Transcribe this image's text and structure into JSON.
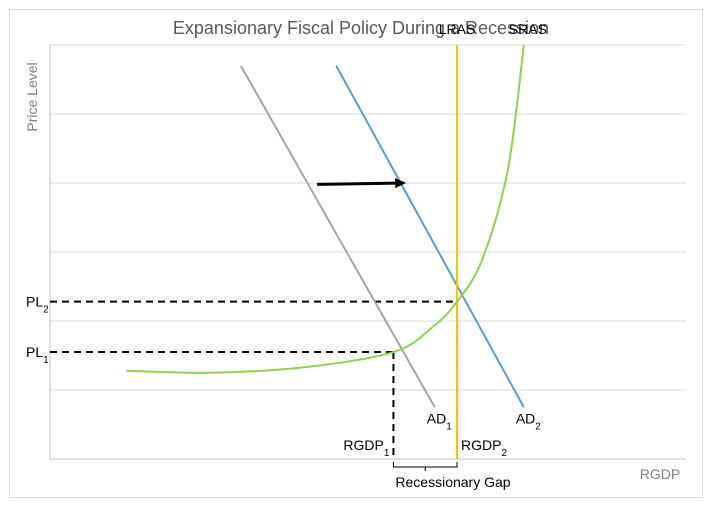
{
  "chart_data": {
    "type": "line",
    "title": "Expansionary Fiscal Policy During a Recession",
    "xlabel": "RGDP",
    "ylabel": "Price Level",
    "grid": true,
    "xlim": [
      0,
      10
    ],
    "ylim": [
      0,
      6
    ],
    "y_gridlines": [
      1,
      2,
      3,
      4,
      5,
      6
    ],
    "series": [
      {
        "name": "AD1",
        "label_main": "AD",
        "label_sub": "1",
        "color": "#A5A5A5",
        "points": [
          [
            3.0,
            5.7
          ],
          [
            6.05,
            0.75
          ]
        ]
      },
      {
        "name": "AD2",
        "label_main": "AD",
        "label_sub": "2",
        "color": "#5B9BD5",
        "points": [
          [
            4.5,
            5.7
          ],
          [
            7.45,
            0.75
          ]
        ]
      },
      {
        "name": "LRAS",
        "label_main": "LRAS",
        "label_sub": "",
        "color": "#FFC000",
        "points": [
          [
            6.4,
            6.0
          ],
          [
            6.4,
            0.0
          ]
        ]
      },
      {
        "name": "SRAS",
        "label_main": "SRAS",
        "label_sub": "",
        "color": "#92D050",
        "points": [
          [
            1.2,
            1.28
          ],
          [
            2.5,
            1.25
          ],
          [
            4.0,
            1.33
          ],
          [
            5.4,
            1.55
          ],
          [
            6.0,
            1.9
          ],
          [
            6.4,
            2.28
          ],
          [
            6.8,
            2.9
          ],
          [
            7.2,
            4.2
          ],
          [
            7.45,
            6.0
          ]
        ]
      }
    ],
    "shift_arrow": {
      "from": [
        4.2,
        3.98
      ],
      "to": [
        5.6,
        4.0
      ],
      "color": "#000000"
    },
    "equilibria": [
      {
        "name": "PL1",
        "label_main": "PL",
        "label_sub": "1",
        "y": 1.55,
        "x_name": "RGDP1",
        "x_label_main": "RGDP",
        "x_label_sub": "1",
        "x": 5.4
      },
      {
        "name": "PL2",
        "label_main": "PL",
        "label_sub": "2",
        "y": 2.28,
        "x_name": "RGDP2",
        "x_label_main": "RGDP",
        "x_label_sub": "2",
        "x": 6.4
      }
    ],
    "gap": {
      "label": "Recessionary Gap",
      "from": 5.4,
      "to": 6.4
    }
  }
}
